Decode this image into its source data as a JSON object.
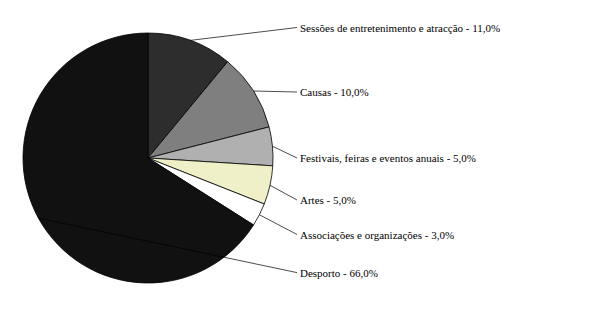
{
  "chart_data": {
    "type": "pie",
    "categories": [
      "Sessões de entretenimento e atracção - 11,0%",
      "Causas - 10,0%",
      "Festivais, feiras e eventos anuais - 5,0%",
      "Artes - 5,0%",
      "Associações e organizações - 3,0%",
      "Desporto - 66,0%"
    ],
    "values": [
      11.0,
      10.0,
      5.0,
      5.0,
      3.0,
      66.0
    ],
    "colors": [
      "#2d2d2d",
      "#7f7f7f",
      "#b0b0b0",
      "#f0f0c8",
      "#ffffff",
      "#111111"
    ]
  }
}
